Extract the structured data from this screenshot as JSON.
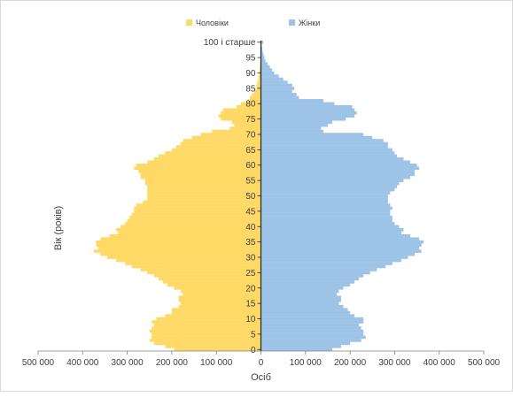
{
  "chart_data": {
    "type": "bar",
    "orientation": "horizontal-population-pyramid",
    "title": "",
    "xlabel": "Осіб",
    "ylabel": "Вік (років)",
    "xlim": [
      -500000,
      500000
    ],
    "x_ticks": [
      -500000,
      -400000,
      -300000,
      -200000,
      -100000,
      0,
      100000,
      200000,
      300000,
      400000,
      500000
    ],
    "x_tick_labels": [
      "500 000",
      "400 000",
      "300 000",
      "200 000",
      "100 000",
      "0",
      "100 000",
      "200 000",
      "300 000",
      "400 000",
      "500 000"
    ],
    "y_tick_ages": [
      0,
      5,
      10,
      15,
      20,
      25,
      30,
      35,
      40,
      45,
      50,
      55,
      60,
      65,
      70,
      75,
      80,
      85,
      90,
      95,
      100
    ],
    "y_tick_labels": [
      "0",
      "5",
      "10",
      "15",
      "20",
      "25",
      "30",
      "35",
      "40",
      "45",
      "50",
      "55",
      "60",
      "65",
      "70",
      "75",
      "80",
      "85",
      "90",
      "95",
      "100 і старше"
    ],
    "legend_position": "top-center",
    "series": [
      {
        "name": "Чоловіки",
        "color": "#ffd966",
        "values": [
          195000,
          215000,
          240000,
          250000,
          245000,
          245000,
          250000,
          245000,
          240000,
          245000,
          235000,
          215000,
          200000,
          200000,
          185000,
          180000,
          185000,
          185000,
          175000,
          180000,
          195000,
          210000,
          220000,
          230000,
          240000,
          255000,
          270000,
          290000,
          305000,
          325000,
          345000,
          360000,
          375000,
          365000,
          370000,
          370000,
          360000,
          340000,
          320000,
          325000,
          315000,
          305000,
          300000,
          295000,
          290000,
          285000,
          285000,
          280000,
          265000,
          255000,
          255000,
          255000,
          255000,
          255000,
          260000,
          260000,
          270000,
          270000,
          275000,
          285000,
          280000,
          255000,
          240000,
          230000,
          215000,
          200000,
          190000,
          180000,
          175000,
          155000,
          135000,
          110000,
          70000,
          60000,
          65000,
          90000,
          95000,
          90000,
          85000,
          55000,
          45000,
          30000,
          25000,
          20000,
          15000,
          10000,
          10000,
          8000,
          6000,
          5000,
          4000,
          3000,
          2500,
          2000,
          1500,
          1000,
          800,
          500,
          300,
          200,
          1000
        ]
      },
      {
        "name": "Жінки",
        "color": "#9dc3e6",
        "values": [
          160000,
          180000,
          200000,
          225000,
          235000,
          230000,
          230000,
          225000,
          220000,
          230000,
          230000,
          210000,
          200000,
          195000,
          185000,
          175000,
          180000,
          180000,
          170000,
          175000,
          185000,
          200000,
          210000,
          220000,
          230000,
          245000,
          260000,
          280000,
          295000,
          315000,
          330000,
          345000,
          360000,
          355000,
          360000,
          365000,
          355000,
          335000,
          315000,
          320000,
          310000,
          300000,
          295000,
          295000,
          290000,
          290000,
          295000,
          290000,
          285000,
          285000,
          285000,
          290000,
          300000,
          305000,
          310000,
          320000,
          335000,
          345000,
          345000,
          355000,
          350000,
          335000,
          320000,
          305000,
          300000,
          295000,
          285000,
          285000,
          275000,
          250000,
          230000,
          140000,
          135000,
          150000,
          160000,
          190000,
          210000,
          215000,
          210000,
          205000,
          165000,
          140000,
          85000,
          80000,
          70000,
          75000,
          70000,
          60000,
          50000,
          40000,
          30000,
          25000,
          20000,
          15000,
          10000,
          8000,
          6000,
          4000,
          3000,
          2000,
          5000
        ]
      }
    ]
  }
}
